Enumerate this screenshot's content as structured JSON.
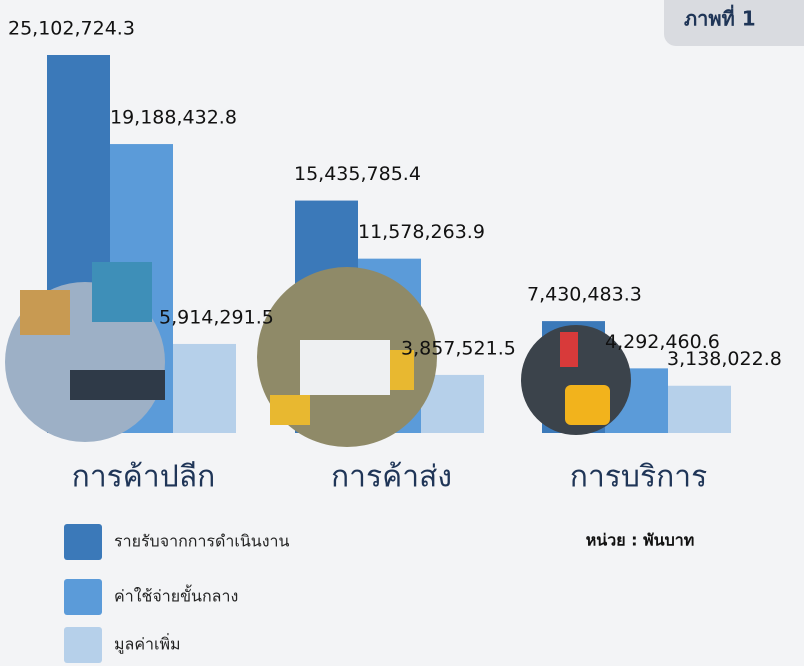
{
  "title": "ภาพที่ 1",
  "chart_data": {
    "type": "bar",
    "categories": [
      "การค้าปลีก",
      "การค้าส่ง",
      "การบริการ"
    ],
    "unit": "หน่วย : พันบาท",
    "series": [
      {
        "name": "รายรับจากการดำเนินงาน",
        "color": "#3b79b9",
        "values": [
          25102724.3,
          15435785.4,
          7430483.3
        ],
        "value_labels": [
          "25,102,724.3",
          "15,435,785.4",
          "7,430,483.3"
        ]
      },
      {
        "name": "ค่าใช้จ่ายขั้นกลาง",
        "color": "#5b9bd9",
        "values": [
          19188432.8,
          11578263.9,
          4292460.6
        ],
        "value_labels": [
          "19,188,432.8",
          "11,578,263.9",
          "4,292,460.6"
        ]
      },
      {
        "name": "มูลค่าเพิ่ม",
        "color": "#b6d0ea",
        "values": [
          5914291.5,
          3857521.5,
          3138022.8
        ],
        "value_labels": [
          "5,914,291.5",
          "3,857,521.5",
          "3,138,022.8"
        ]
      }
    ]
  }
}
